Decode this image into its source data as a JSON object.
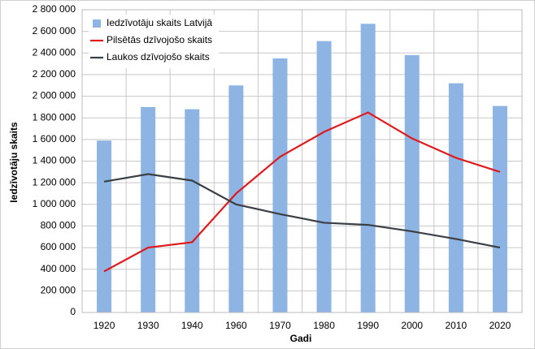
{
  "chart_data": {
    "type": "bar",
    "x_label": "Gadi",
    "y_label": "Iedzīvotāju skaits",
    "categories": [
      "1920",
      "1930",
      "1940",
      "1960",
      "1970",
      "1980",
      "1990",
      "2000",
      "2010",
      "2020"
    ],
    "series": [
      {
        "name": "Iedzīvotāju skaits Latvijā",
        "type": "bar",
        "color": "#8eb4e3",
        "values": [
          1590000,
          1900000,
          1880000,
          2100000,
          2350000,
          2510000,
          2670000,
          2380000,
          2120000,
          1910000
        ]
      },
      {
        "name": "Pilsētās dzīvojošo skaits",
        "type": "line",
        "color": "#e0191d",
        "values": [
          380000,
          600000,
          650000,
          1100000,
          1440000,
          1670000,
          1850000,
          1610000,
          1430000,
          1300000
        ]
      },
      {
        "name": "Laukos dzīvojošo skaits",
        "type": "line",
        "color": "#3a3f44",
        "values": [
          1210000,
          1280000,
          1220000,
          1000000,
          910000,
          830000,
          810000,
          750000,
          680000,
          600000
        ]
      }
    ],
    "ylim": [
      0,
      2800000
    ],
    "yticks": [
      0,
      {
        "value": 200000,
        "label": "200 000"
      },
      {
        "value": 400000,
        "label": "400 000"
      },
      {
        "value": 600000,
        "label": "600 000"
      },
      {
        "value": 800000,
        "label": "800 000"
      },
      {
        "value": 1000000,
        "label": "1 000 000"
      },
      {
        "value": 1200000,
        "label": "1 200 000"
      },
      {
        "value": 1400000,
        "label": "1 400 000"
      },
      {
        "value": 1600000,
        "label": "1 600 000"
      },
      {
        "value": 1800000,
        "label": "1 800 000"
      },
      {
        "value": 2000000,
        "label": "2 000 000"
      },
      {
        "value": 2200000,
        "label": "2 200 000"
      },
      {
        "value": 2400000,
        "label": "2 400 000"
      },
      {
        "value": 2600000,
        "label": "2 600 000"
      },
      {
        "value": 2800000,
        "label": "2 800 000"
      }
    ],
    "grid": true,
    "legend": "top-left"
  }
}
